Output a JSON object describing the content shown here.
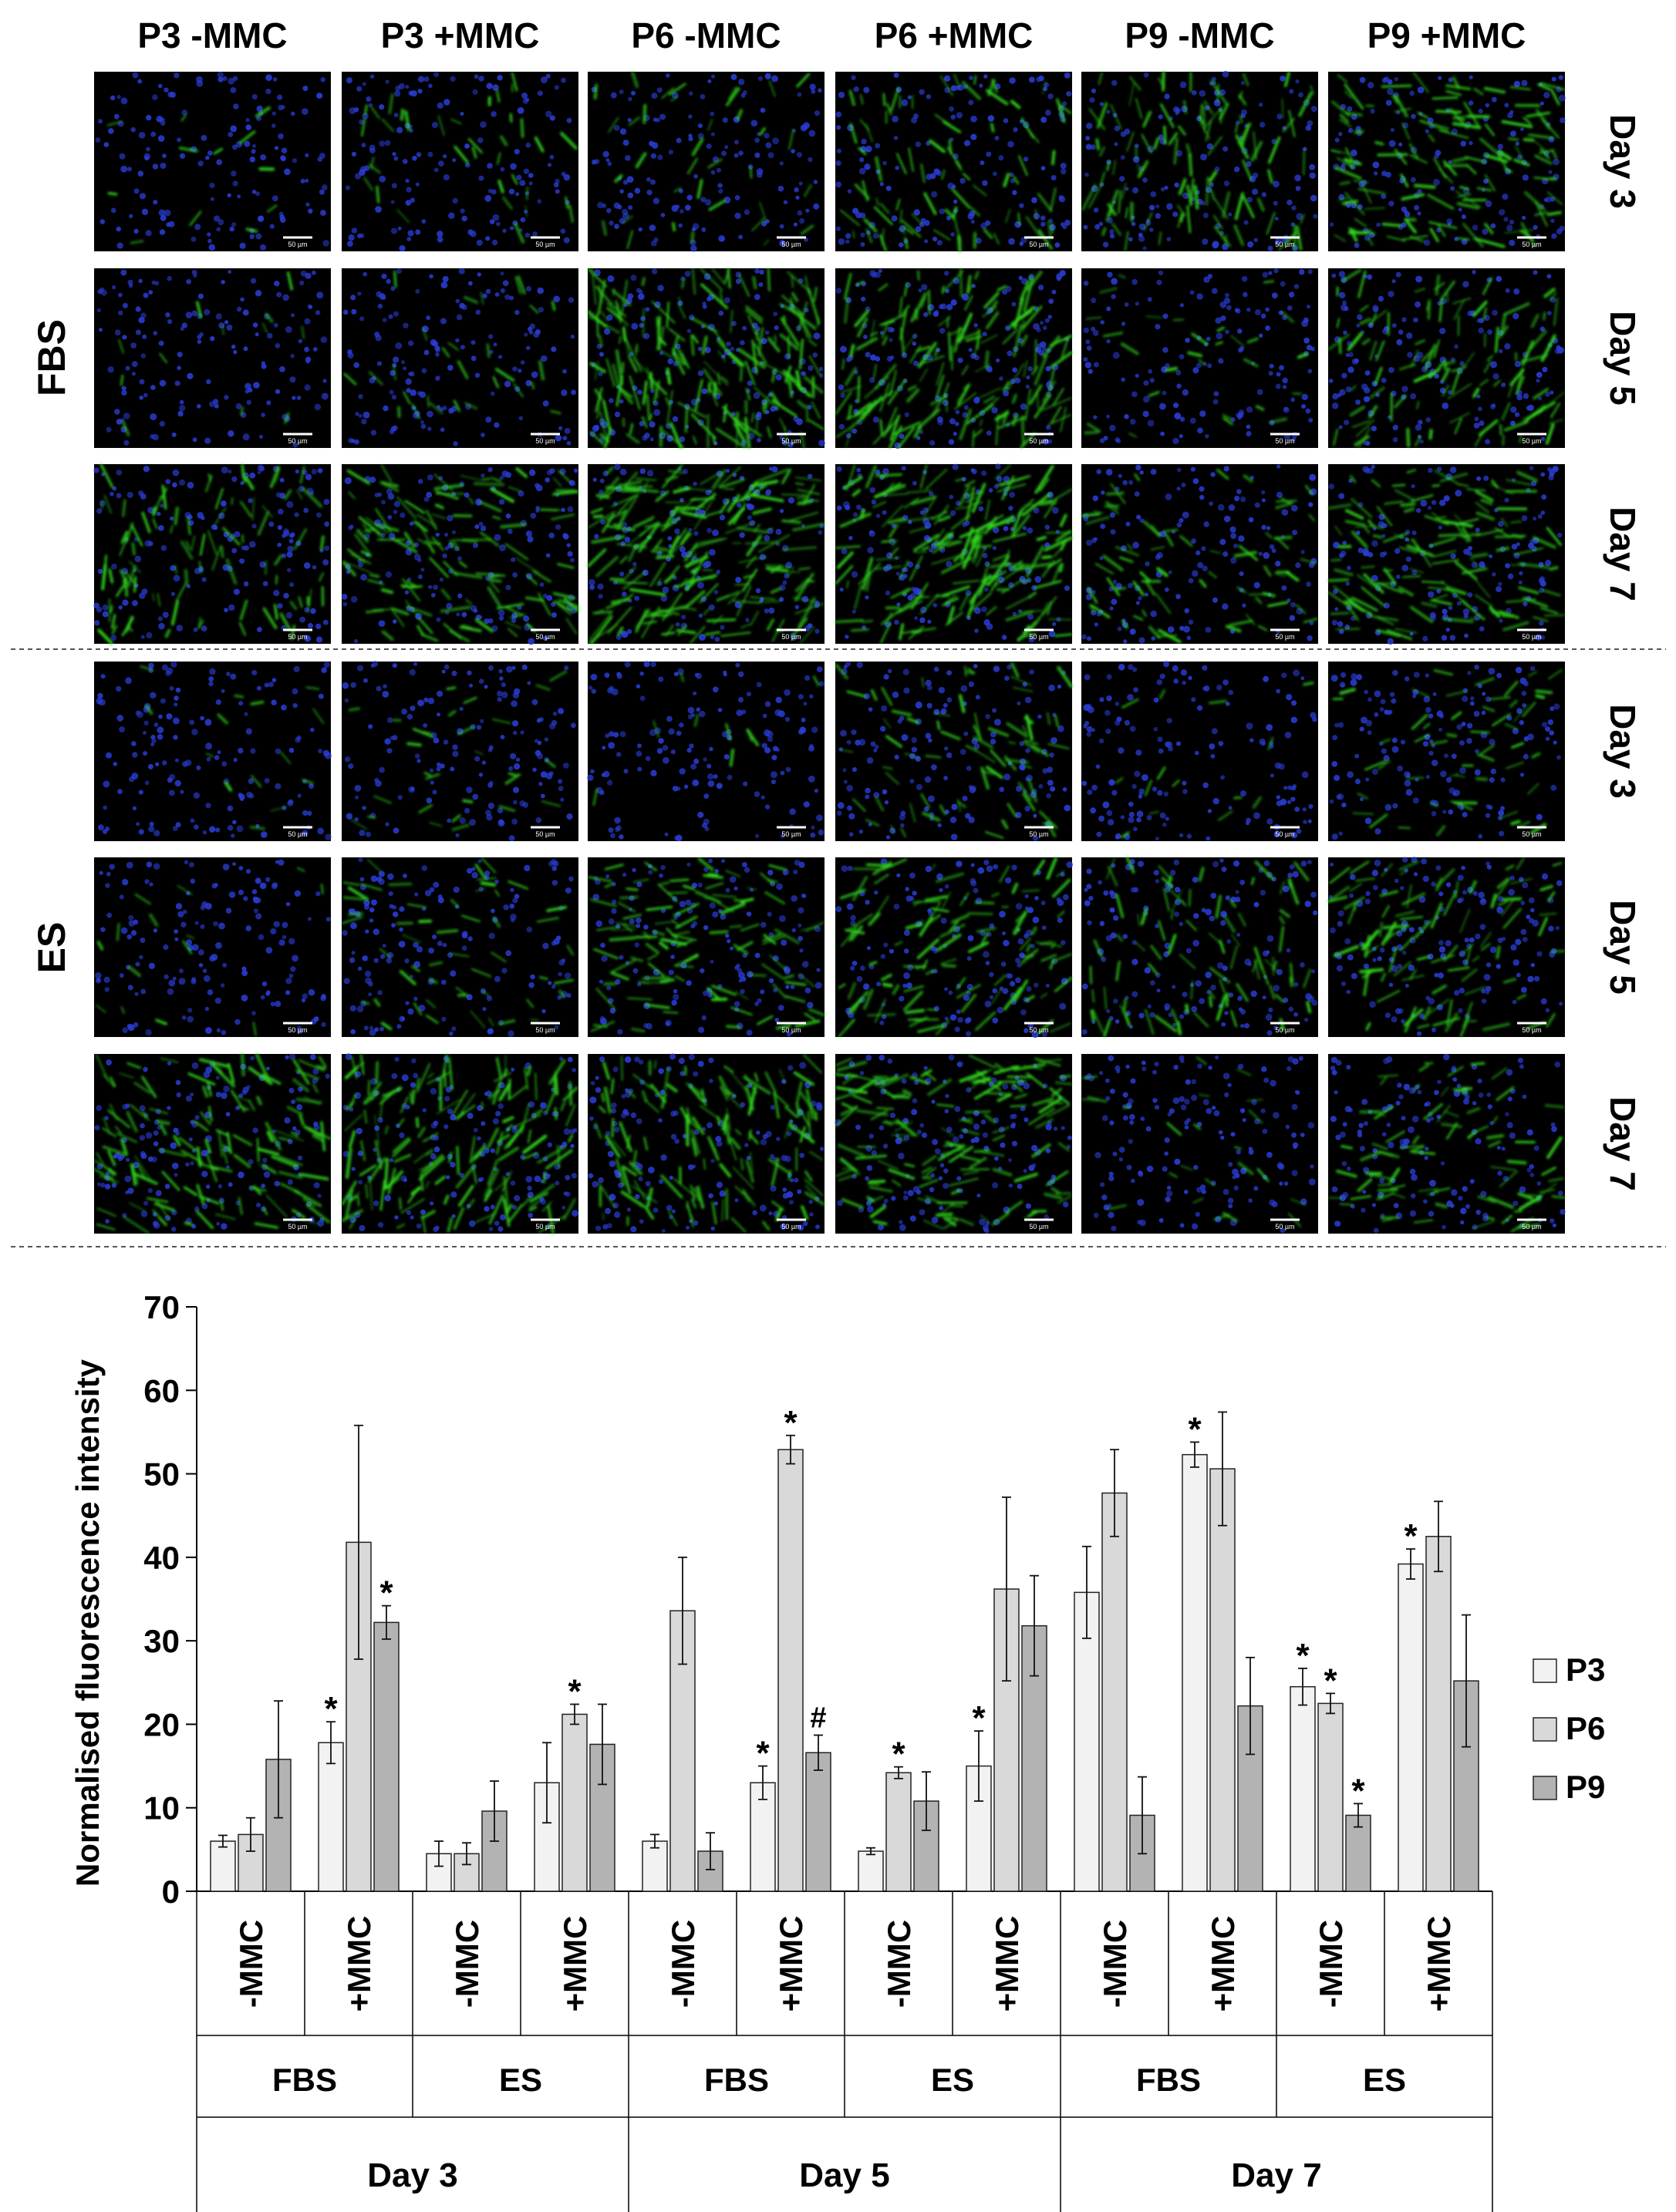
{
  "panel": {
    "column_headers": [
      "P3 -MMC",
      "P3 +MMC",
      "P6 -MMC",
      "P6 +MMC",
      "P9 -MMC",
      "P9 +MMC"
    ],
    "groups": [
      {
        "label": "FBS",
        "rows": [
          "Day 3",
          "Day 5",
          "Day 7"
        ]
      },
      {
        "label": "ES",
        "rows": [
          "Day 3",
          "Day 5",
          "Day 7"
        ]
      }
    ],
    "scale_bar_label": "50 µm",
    "green_level": [
      [
        0.05,
        0.15,
        0.15,
        0.35,
        0.45,
        0.55
      ],
      [
        0.05,
        0.12,
        0.8,
        0.65,
        0.12,
        0.45
      ],
      [
        0.4,
        0.5,
        0.8,
        0.75,
        0.3,
        0.55
      ],
      [
        0.06,
        0.12,
        0.04,
        0.3,
        0.06,
        0.22
      ],
      [
        0.06,
        0.22,
        0.45,
        0.45,
        0.35,
        0.4
      ],
      [
        0.55,
        0.65,
        0.55,
        0.6,
        0.1,
        0.35
      ]
    ]
  },
  "colors": {
    "P3": "#f2f2f2",
    "P6": "#d9d9d9",
    "P9": "#b3b3b3",
    "nuclei": "#2a3dd6",
    "actin": "#33e01f",
    "background": "#000000"
  },
  "chart_data": {
    "type": "bar",
    "ylabel": "Normalised fluorescence intensity",
    "ylim": [
      0,
      70
    ],
    "yticks": [
      0,
      10,
      20,
      30,
      40,
      50,
      60,
      70
    ],
    "grid": false,
    "legend_position": "right",
    "categories": [
      "-MMC",
      "+MMC",
      "-MMC",
      "+MMC",
      "-MMC",
      "+MMC",
      "-MMC",
      "+MMC",
      "-MMC",
      "+MMC",
      "-MMC",
      "+MMC"
    ],
    "medium_labels": [
      "FBS",
      "ES",
      "FBS",
      "ES",
      "FBS",
      "ES"
    ],
    "day_labels": [
      "Day 3",
      "Day 5",
      "Day 7"
    ],
    "series": [
      {
        "name": "P3",
        "values": [
          6,
          17.8,
          4.5,
          13,
          6,
          13,
          4.8,
          15,
          35.8,
          52.3,
          24.5,
          39.2
        ],
        "errors": [
          0.7,
          2.5,
          1.5,
          4.8,
          0.8,
          2,
          0.4,
          4.2,
          5.5,
          1.5,
          2.2,
          1.8
        ],
        "annotations": [
          "",
          "*",
          "",
          "",
          "",
          "*",
          "",
          "*",
          "",
          "*",
          "*",
          "*"
        ]
      },
      {
        "name": "P6",
        "values": [
          6.8,
          41.8,
          4.5,
          21.2,
          33.6,
          52.9,
          14.2,
          36.2,
          47.7,
          50.6,
          22.5,
          42.5
        ],
        "errors": [
          2,
          14,
          1.3,
          1.2,
          6.4,
          1.7,
          0.7,
          11,
          5.2,
          6.8,
          1.2,
          4.2
        ],
        "annotations": [
          "",
          "",
          "",
          "*",
          "",
          "*",
          "*",
          "",
          "",
          "",
          "*",
          ""
        ]
      },
      {
        "name": "P9",
        "values": [
          15.8,
          32.2,
          9.6,
          17.6,
          4.8,
          16.6,
          10.8,
          31.8,
          9.1,
          22.2,
          9.1,
          25.2
        ],
        "errors": [
          7,
          2,
          3.6,
          4.8,
          2.2,
          2.1,
          3.5,
          6,
          4.6,
          5.8,
          1.4,
          7.9
        ],
        "annotations": [
          "",
          "*",
          "",
          "",
          "",
          "#",
          "",
          "",
          "",
          "",
          "*",
          ""
        ]
      }
    ]
  }
}
